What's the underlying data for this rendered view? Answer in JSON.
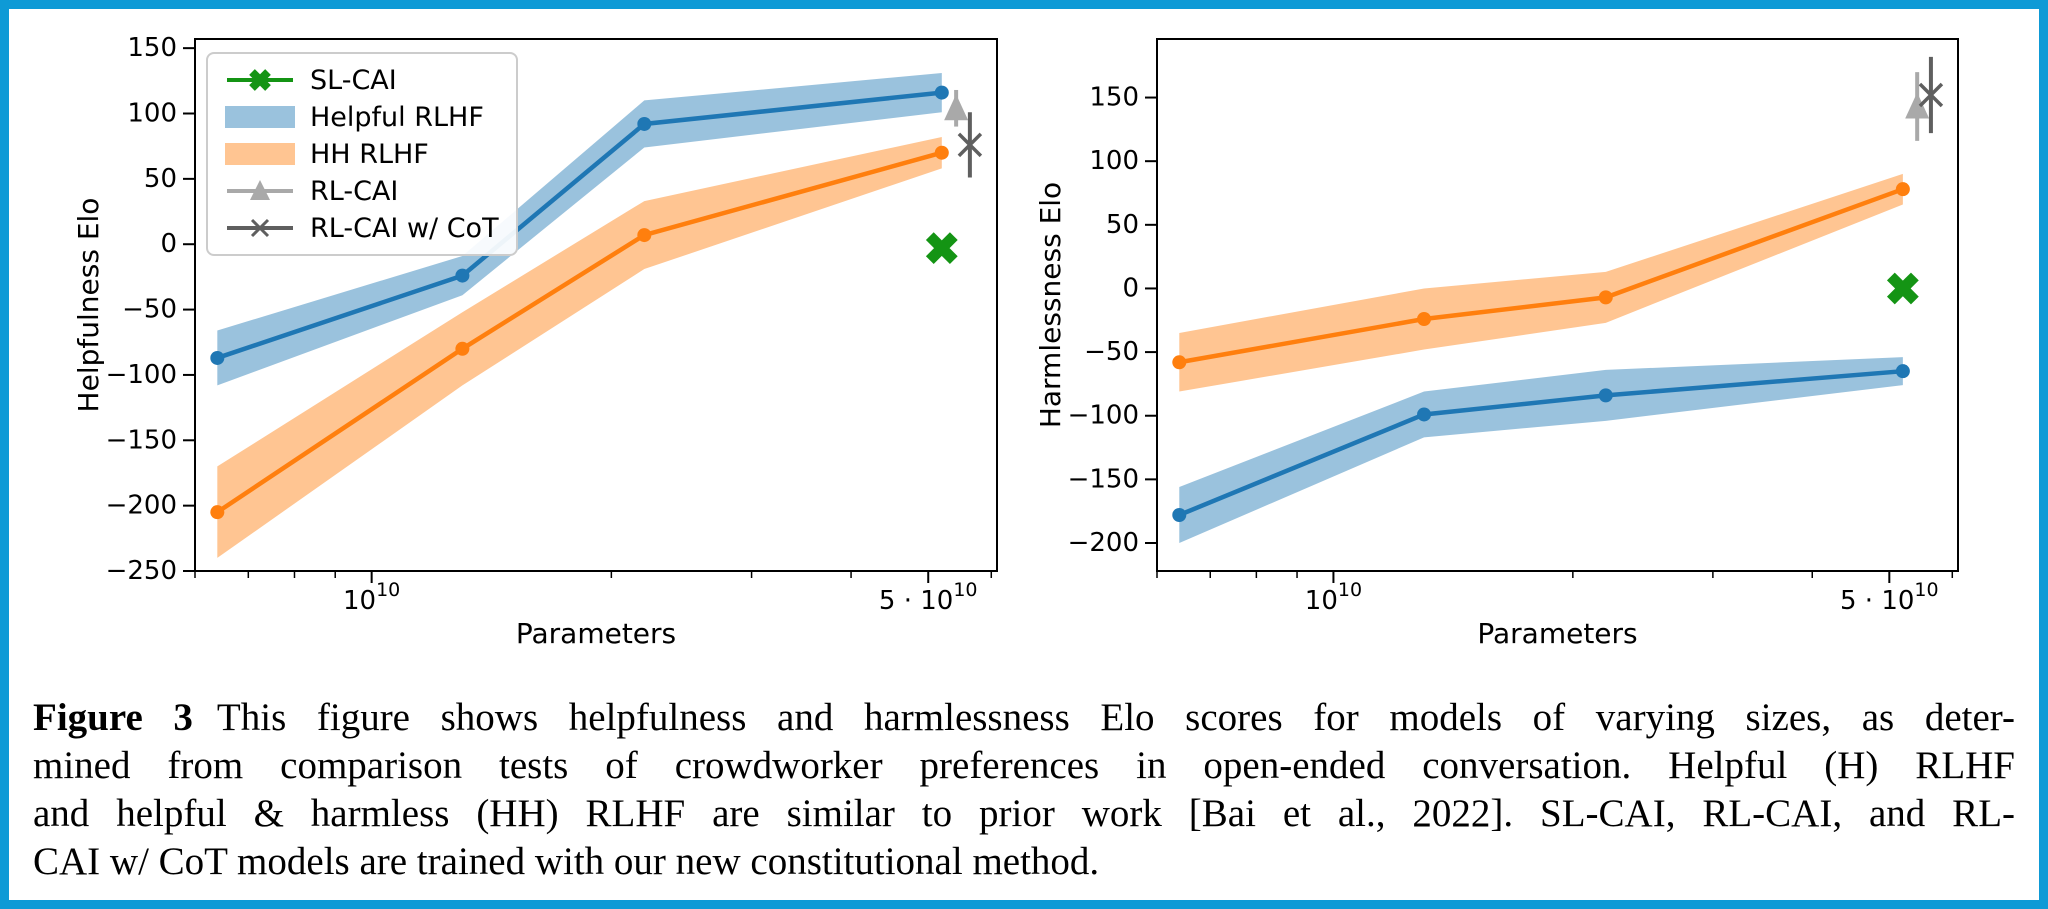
{
  "frame": {
    "border_color": "#0e9ad6",
    "background": "#ffffff"
  },
  "caption": {
    "label": "Figure 3",
    "lines": [
      "This figure shows helpfulness and harmlessness Elo scores for models of varying sizes, as deter-",
      "mined from comparison tests of crowdworker preferences in open-ended conversation.  Helpful (H) RLHF",
      "and helpful & harmless (HH) RLHF are similar to prior work [Bai et al., 2022].  SL-CAI, RL-CAI, and RL-",
      "CAI w/ CoT models are trained with our new constitutional method."
    ]
  },
  "chart_data": [
    {
      "type": "line",
      "title": "",
      "xlabel": "Parameters",
      "ylabel": "Helpfulness Elo",
      "xscale": "log",
      "grid": false,
      "xlim": [
        6000000000.0,
        61000000000.0
      ],
      "ylim": [
        -250,
        157
      ],
      "yticks": [
        150,
        100,
        50,
        0,
        -50,
        -100,
        -150,
        -200,
        -250
      ],
      "xticks_major": [
        {
          "value": 10000000000.0,
          "prefix": "",
          "base": "10",
          "exponent": "10"
        },
        {
          "value": 50000000000.0,
          "prefix": "5 · ",
          "base": "10",
          "exponent": "10"
        }
      ],
      "xticks_minor": [
        6000000000.0,
        7000000000.0,
        8000000000.0,
        9000000000.0,
        20000000000.0,
        30000000000.0,
        40000000000.0,
        60000000000.0
      ],
      "x": [
        6400000000.0,
        13000000000.0,
        22000000000.0,
        52000000000.0
      ],
      "series": [
        {
          "name": "Helpful RLHF",
          "color": "#1f77b4",
          "band_color": "rgba(31,119,180,0.45)",
          "values": [
            -87,
            -24,
            92,
            116
          ],
          "err": [
            21,
            15,
            18,
            15
          ]
        },
        {
          "name": "HH RLHF",
          "color": "#ff7f0e",
          "band_color": "rgba(255,127,14,0.45)",
          "values": [
            -205,
            -80,
            7,
            70
          ],
          "err": [
            35,
            28,
            26,
            12
          ]
        }
      ],
      "points": [
        {
          "name": "SL-CAI",
          "marker": "X",
          "color": "#149414",
          "x": 52000000000.0,
          "y": -3,
          "err": 0
        },
        {
          "name": "RL-CAI",
          "marker": "triangle",
          "color": "#a9a9a9",
          "x": 54200000000.0,
          "y": 104,
          "err": 14
        },
        {
          "name": "RL-CAI w/ CoT",
          "marker": "x",
          "color": "#5f5f5f",
          "x": 56400000000.0,
          "y": 76,
          "err": 25
        }
      ],
      "legend": {
        "show": true,
        "position": "upper left",
        "items": [
          {
            "label": "SL-CAI",
            "swatch": "line-X",
            "color": "#149414"
          },
          {
            "label": "Helpful RLHF",
            "swatch": "patch",
            "color": "rgba(31,119,180,0.45)"
          },
          {
            "label": "HH RLHF",
            "swatch": "patch",
            "color": "rgba(255,127,14,0.45)"
          },
          {
            "label": "RL-CAI",
            "swatch": "line-triangle",
            "color": "#a9a9a9"
          },
          {
            "label": "RL-CAI w/ CoT",
            "swatch": "line-x",
            "color": "#5f5f5f"
          }
        ]
      }
    },
    {
      "type": "line",
      "title": "",
      "xlabel": "Parameters",
      "ylabel": "Harmlessness Elo",
      "xscale": "log",
      "grid": false,
      "xlim": [
        6000000000.0,
        61000000000.0
      ],
      "ylim": [
        -222,
        196
      ],
      "yticks": [
        150,
        100,
        50,
        0,
        -50,
        -100,
        -150,
        -200
      ],
      "xticks_major": [
        {
          "value": 10000000000.0,
          "prefix": "",
          "base": "10",
          "exponent": "10"
        },
        {
          "value": 50000000000.0,
          "prefix": "5 · ",
          "base": "10",
          "exponent": "10"
        }
      ],
      "xticks_minor": [
        6000000000.0,
        7000000000.0,
        8000000000.0,
        9000000000.0,
        20000000000.0,
        30000000000.0,
        40000000000.0,
        60000000000.0
      ],
      "x": [
        6400000000.0,
        13000000000.0,
        22000000000.0,
        52000000000.0
      ],
      "series": [
        {
          "name": "Helpful RLHF",
          "color": "#1f77b4",
          "band_color": "rgba(31,119,180,0.45)",
          "values": [
            -178,
            -99,
            -84,
            -65
          ],
          "err": [
            22,
            18,
            20,
            11
          ]
        },
        {
          "name": "HH RLHF",
          "color": "#ff7f0e",
          "band_color": "rgba(255,127,14,0.45)",
          "values": [
            -58,
            -24,
            -7,
            78
          ],
          "err": [
            23,
            24,
            20,
            12
          ]
        }
      ],
      "points": [
        {
          "name": "SL-CAI",
          "marker": "X",
          "color": "#149414",
          "x": 52000000000.0,
          "y": 0,
          "err": 0
        },
        {
          "name": "RL-CAI",
          "marker": "triangle",
          "color": "#a9a9a9",
          "x": 54200000000.0,
          "y": 143,
          "err": 27
        },
        {
          "name": "RL-CAI w/ CoT",
          "marker": "x",
          "color": "#5f5f5f",
          "x": 56400000000.0,
          "y": 152,
          "err": 30
        }
      ],
      "legend": {
        "show": false,
        "items": []
      }
    }
  ]
}
